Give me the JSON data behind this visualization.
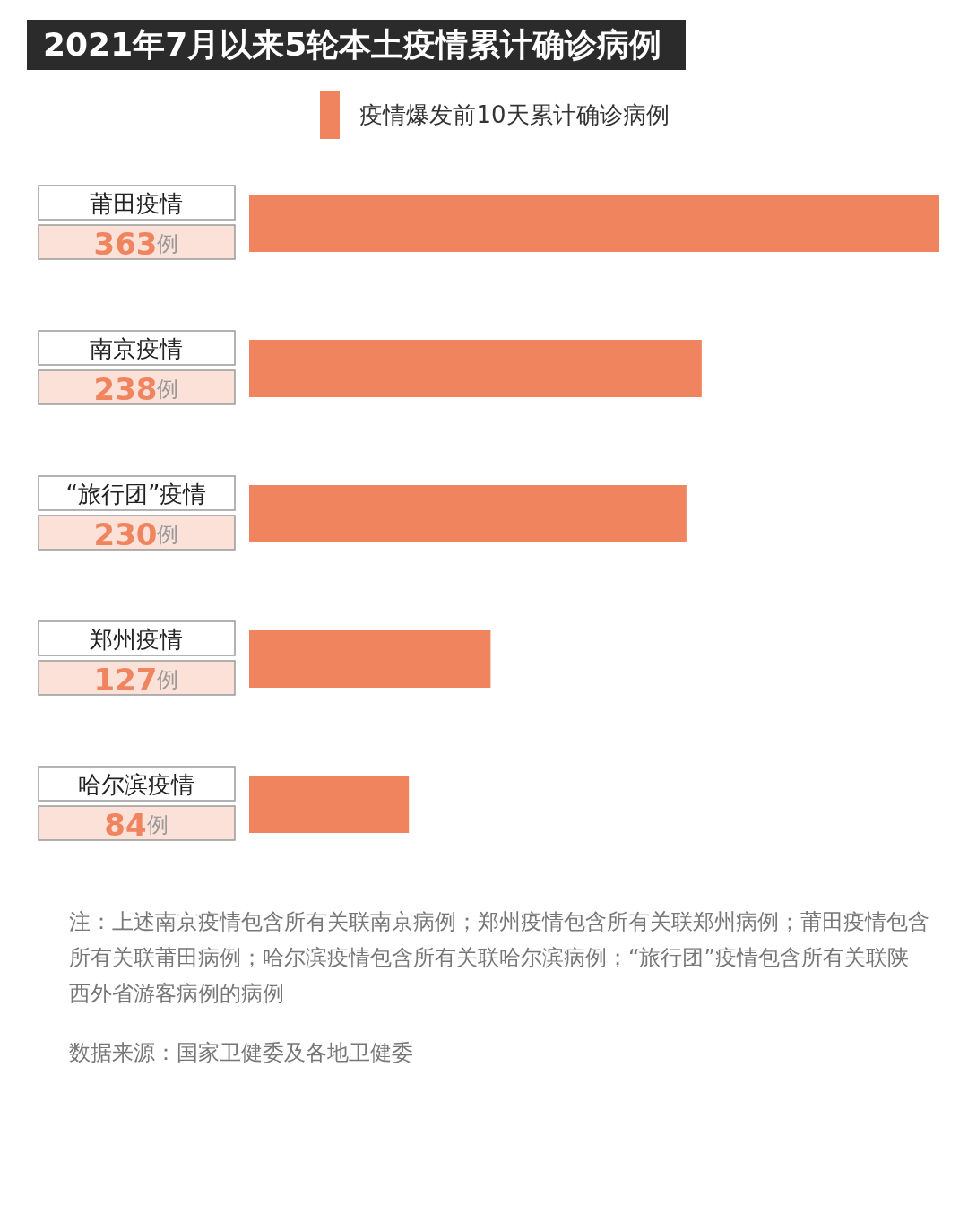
{
  "chart_data": {
    "type": "bar",
    "orientation": "horizontal",
    "title": "2021年7月以来5轮本土疫情累计确诊病例",
    "categories": [
      "莆田疫情",
      "南京疫情",
      "“旅行团”疫情",
      "郑州疫情",
      "哈尔滨疫情"
    ],
    "series": [
      {
        "name": "疫情爆发前10天累计确诊病例",
        "color": "#f0845f",
        "values": [
          363,
          238,
          230,
          127,
          84
        ],
        "value_labels": [
          "363例",
          "238例",
          "230例",
          "127例",
          "84例"
        ]
      }
    ],
    "legend": "top",
    "annotations": [
      "注：上述南京疫情包含所有关联南京病例；郑州疫情包含所有关联郑州病例；莆田疫情包含所有关联莆田病例；哈尔滨疫情包含所有关联哈尔滨病例；“旅行团”疫情包含所有关联陕西外省游客病例的病例",
      "数据来源：国家卫健委及各地卫健委"
    ]
  }
}
